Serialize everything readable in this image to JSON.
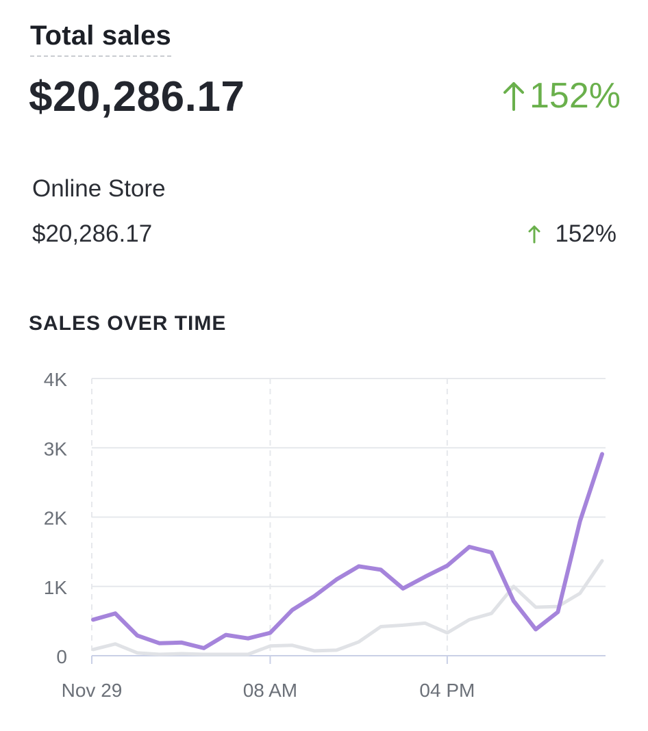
{
  "colors": {
    "positive": "#6ab04c",
    "series_current": "#a584db",
    "series_previous": "#e0e2e6",
    "grid": "#e6e8ec",
    "axis_text": "#6b7078",
    "baseline": "#c9d0e6"
  },
  "header": {
    "title": "Total sales",
    "total_value": "$20,286.17",
    "total_change": "152%",
    "change_icon": "arrow-up-icon"
  },
  "breakdown": {
    "channel_name": "Online Store",
    "channel_value": "$20,286.17",
    "channel_change": "152%"
  },
  "chart_title": "SALES OVER TIME",
  "chart_data": {
    "type": "line",
    "title": "SALES OVER TIME",
    "y_ticks": [
      "4K",
      "3K",
      "2K",
      "1K",
      "0"
    ],
    "y_tick_values": [
      4000,
      3000,
      2000,
      1000,
      0
    ],
    "ylim": [
      0,
      4000
    ],
    "x_tick_labels": [
      "Nov 29",
      "08 AM",
      "04 PM"
    ],
    "x_tick_hours": [
      0,
      8,
      16
    ],
    "x_hours": [
      0,
      1,
      2,
      3,
      4,
      5,
      6,
      7,
      8,
      9,
      10,
      11,
      12,
      13,
      14,
      15,
      16,
      17,
      18,
      19,
      20,
      21,
      22,
      23
    ],
    "grid": true,
    "series": [
      {
        "values": [
          520,
          610,
          290,
          180,
          190,
          110,
          300,
          250,
          330,
          660,
          860,
          1100,
          1290,
          1240,
          970,
          1140,
          1300,
          1570,
          1490,
          790,
          380,
          630,
          1940,
          2910
        ]
      },
      {
        "values": [
          90,
          170,
          40,
          20,
          30,
          20,
          20,
          20,
          140,
          150,
          70,
          80,
          200,
          420,
          440,
          470,
          330,
          520,
          610,
          1000,
          700,
          710,
          900,
          1370
        ]
      }
    ]
  }
}
